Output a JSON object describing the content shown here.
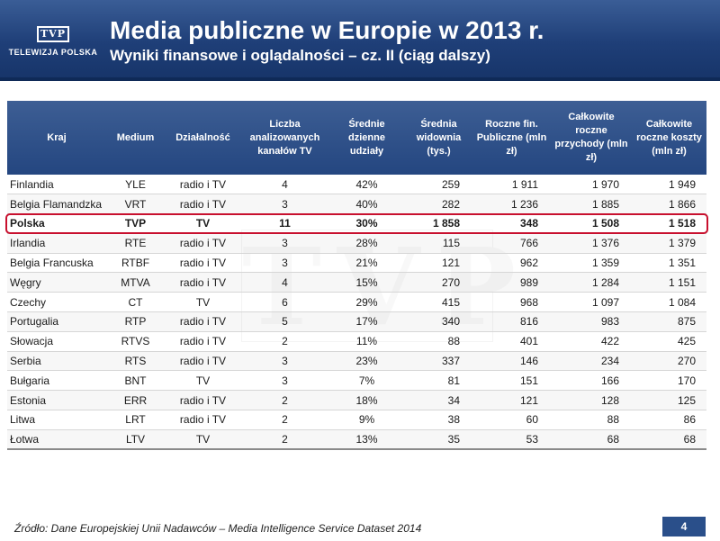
{
  "header": {
    "logo_mark": "TVP",
    "logo_text": "TELEWIZJA POLSKA",
    "title": "Media publiczne w Europie w 2013 r.",
    "subtitle": "Wyniki finansowe i oglądalności – cz. II (ciąg dalszy)"
  },
  "watermark": "TVP",
  "table": {
    "columns": [
      "Kraj",
      "Medium",
      "Działalność",
      "Liczba analizowanych kanałów TV",
      "Średnie dzienne udziały",
      "Średnia widownia (tys.)",
      "Roczne fin. Publiczne (mln zł)",
      "Całkowite roczne przychody (mln zł)",
      "Całkowite roczne koszty (mln zł)"
    ],
    "rows": [
      [
        "Finlandia",
        "YLE",
        "radio i TV",
        "4",
        "42%",
        "259",
        "1 911",
        "1 970",
        "1 949"
      ],
      [
        "Belgia Flamandzka",
        "VRT",
        "radio i TV",
        "3",
        "40%",
        "282",
        "1 236",
        "1 885",
        "1 866"
      ],
      [
        "Polska",
        "TVP",
        "TV",
        "11",
        "30%",
        "1 858",
        "348",
        "1 508",
        "1 518"
      ],
      [
        "Irlandia",
        "RTE",
        "radio i TV",
        "3",
        "28%",
        "115",
        "766",
        "1 376",
        "1 379"
      ],
      [
        "Belgia Francuska",
        "RTBF",
        "radio i TV",
        "3",
        "21%",
        "121",
        "962",
        "1 359",
        "1 351"
      ],
      [
        "Węgry",
        "MTVA",
        "radio i TV",
        "4",
        "15%",
        "270",
        "989",
        "1 284",
        "1 151"
      ],
      [
        "Czechy",
        "CT",
        "TV",
        "6",
        "29%",
        "415",
        "968",
        "1 097",
        "1 084"
      ],
      [
        "Portugalia",
        "RTP",
        "radio i TV",
        "5",
        "17%",
        "340",
        "816",
        "983",
        "875"
      ],
      [
        "Słowacja",
        "RTVS",
        "radio i TV",
        "2",
        "11%",
        "88",
        "401",
        "422",
        "425"
      ],
      [
        "Serbia",
        "RTS",
        "radio i TV",
        "3",
        "23%",
        "337",
        "146",
        "234",
        "270"
      ],
      [
        "Bułgaria",
        "BNT",
        "TV",
        "3",
        "7%",
        "81",
        "151",
        "166",
        "170"
      ],
      [
        "Estonia",
        "ERR",
        "radio i TV",
        "2",
        "18%",
        "34",
        "121",
        "128",
        "125"
      ],
      [
        "Litwa",
        "LRT",
        "radio i TV",
        "2",
        "9%",
        "38",
        "60",
        "88",
        "86"
      ],
      [
        "Łotwa",
        "LTV",
        "TV",
        "2",
        "13%",
        "35",
        "53",
        "68",
        "68"
      ]
    ]
  },
  "footer": {
    "source": "Źródło: Dane Europejskiej Unii Nadawców – Media Intelligence Service Dataset 2014",
    "page_number": "4"
  },
  "colors": {
    "header_bg": "#244680",
    "highlight_border": "#c8102e",
    "page_badge": "#2a4f8a"
  }
}
